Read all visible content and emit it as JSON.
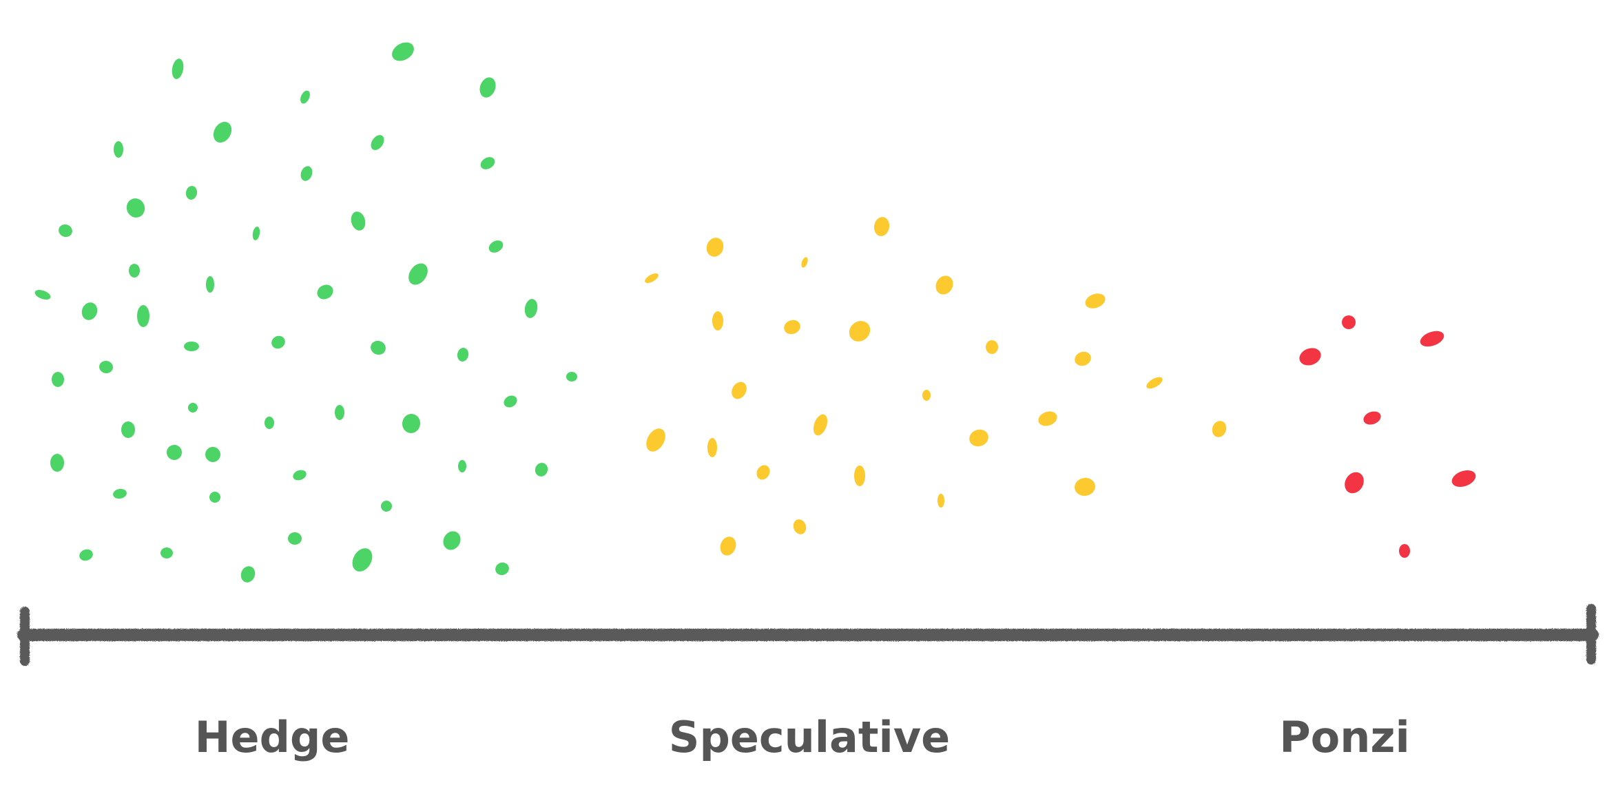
{
  "colors": {
    "hedge": "#4cd466",
    "speculative": "#fcca2e",
    "ponzi": "#f23443",
    "axis": "#5a5a5a",
    "label": "#555555"
  },
  "labels": [
    {
      "key": "hedge",
      "text": "Hedge"
    },
    {
      "key": "speculative",
      "text": "Speculative"
    },
    {
      "key": "ponzi",
      "text": "Ponzi"
    }
  ]
}
